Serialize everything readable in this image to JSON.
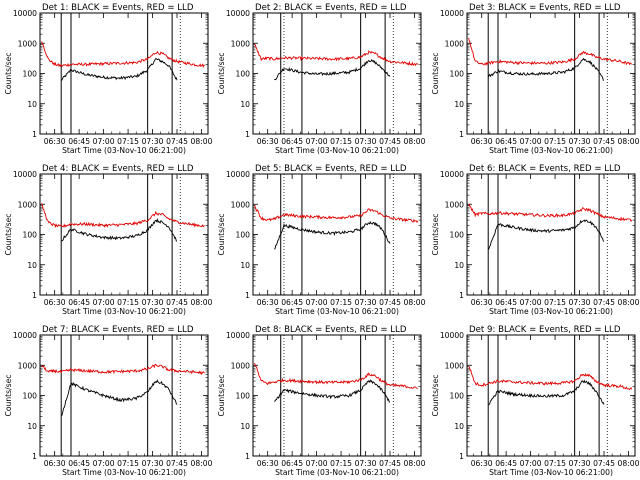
{
  "figure": {
    "x_ticks": [
      "06:30",
      "06:45",
      "07:00",
      "07:15",
      "07:30",
      "07:45",
      "08:00"
    ],
    "y_ticks": [
      "1",
      "10",
      "100",
      "1000",
      "10000"
    ]
  },
  "colors": {
    "events": "#000000",
    "lld": "#e00000"
  },
  "chart_data": [
    {
      "type": "line",
      "title": "Det 1: BLACK = Events, RED = LLD",
      "xlabel": "Start Time (03-Nov-10 06:21:00)",
      "ylabel": "Counts/sec",
      "xlim": [
        "06:21",
        "08:04"
      ],
      "ylim": [
        1,
        10000
      ],
      "yscale": "log",
      "x_ticks": [
        "06:30",
        "06:45",
        "07:00",
        "07:15",
        "07:30",
        "07:45",
        "08:00"
      ],
      "solid_vlines": [
        "06:34",
        "06:40",
        "07:27",
        "07:42"
      ],
      "dotted_vlines": [
        "06:40",
        "07:47"
      ],
      "x": [
        "06:22",
        "06:26",
        "06:30",
        "06:34",
        "06:40",
        "06:50",
        "07:00",
        "07:10",
        "07:20",
        "07:27",
        "07:32",
        "07:36",
        "07:40",
        "07:45",
        "07:55",
        "08:02"
      ],
      "series": [
        {
          "name": "Events",
          "color": "#000000",
          "values": [
            null,
            null,
            null,
            60,
            130,
            90,
            75,
            70,
            80,
            130,
            300,
            250,
            180,
            60,
            null,
            null
          ]
        },
        {
          "name": "LLD",
          "color": "#e00000",
          "values": [
            1200,
            300,
            200,
            180,
            200,
            200,
            210,
            220,
            230,
            300,
            500,
            450,
            320,
            250,
            200,
            180
          ]
        }
      ]
    },
    {
      "type": "line",
      "title": "Det 2: BLACK = Events, RED = LLD",
      "xlabel": "Start Time (03-Nov-10 06:21:00)",
      "ylabel": "Counts/sec",
      "xlim": [
        "06:21",
        "08:04"
      ],
      "ylim": [
        1,
        10000
      ],
      "yscale": "log",
      "x_ticks": [
        "06:30",
        "06:45",
        "07:00",
        "07:15",
        "07:30",
        "07:45",
        "08:00"
      ],
      "solid_vlines": [
        "06:38",
        "06:51",
        "07:27",
        "07:42"
      ],
      "dotted_vlines": [
        "06:40",
        "07:47"
      ],
      "x": [
        "06:22",
        "06:26",
        "06:30",
        "06:34",
        "06:40",
        "06:50",
        "07:00",
        "07:10",
        "07:20",
        "07:27",
        "07:32",
        "07:36",
        "07:40",
        "07:45",
        "07:55",
        "08:02"
      ],
      "series": [
        {
          "name": "Events",
          "color": "#000000",
          "values": [
            null,
            null,
            null,
            60,
            150,
            110,
            95,
            100,
            110,
            150,
            280,
            230,
            150,
            80,
            null,
            null
          ]
        },
        {
          "name": "LLD",
          "color": "#e00000",
          "values": [
            900,
            300,
            320,
            300,
            330,
            320,
            310,
            300,
            310,
            350,
            500,
            450,
            330,
            250,
            220,
            200
          ]
        }
      ]
    },
    {
      "type": "line",
      "title": "Det 3: BLACK = Events, RED = LLD",
      "xlabel": "Start Time (03-Nov-10 06:21:00)",
      "ylabel": "Counts/sec",
      "xlim": [
        "06:21",
        "08:04"
      ],
      "ylim": [
        1,
        10000
      ],
      "yscale": "log",
      "x_ticks": [
        "06:30",
        "06:45",
        "07:00",
        "07:15",
        "07:30",
        "07:45",
        "08:00"
      ],
      "solid_vlines": [
        "06:34",
        "06:40",
        "07:27",
        "07:42"
      ],
      "dotted_vlines": [
        "06:40",
        "07:47"
      ],
      "x": [
        "06:22",
        "06:26",
        "06:30",
        "06:34",
        "06:40",
        "06:50",
        "07:00",
        "07:10",
        "07:20",
        "07:27",
        "07:32",
        "07:36",
        "07:40",
        "07:45",
        "07:55",
        "08:02"
      ],
      "series": [
        {
          "name": "Events",
          "color": "#000000",
          "values": [
            null,
            null,
            null,
            80,
            120,
            100,
            95,
            100,
            110,
            150,
            300,
            250,
            150,
            60,
            null,
            null
          ]
        },
        {
          "name": "LLD",
          "color": "#e00000",
          "values": [
            1500,
            250,
            200,
            220,
            250,
            230,
            220,
            220,
            240,
            300,
            500,
            450,
            350,
            300,
            250,
            200
          ]
        }
      ]
    },
    {
      "type": "line",
      "title": "Det 4: BLACK = Events, RED = LLD",
      "xlabel": "Start Time (03-Nov-10 06:21:00)",
      "ylabel": "Counts/sec",
      "xlim": [
        "06:21",
        "08:04"
      ],
      "ylim": [
        1,
        10000
      ],
      "yscale": "log",
      "x_ticks": [
        "06:30",
        "06:45",
        "07:00",
        "07:15",
        "07:30",
        "07:45",
        "08:00"
      ],
      "solid_vlines": [
        "06:34",
        "06:40",
        "07:27",
        "07:42"
      ],
      "dotted_vlines": [
        "06:40",
        "07:47"
      ],
      "x": [
        "06:22",
        "06:26",
        "06:30",
        "06:34",
        "06:40",
        "06:50",
        "07:00",
        "07:10",
        "07:20",
        "07:27",
        "07:32",
        "07:36",
        "07:40",
        "07:45",
        "07:55",
        "08:02"
      ],
      "series": [
        {
          "name": "Events",
          "color": "#000000",
          "values": [
            null,
            null,
            null,
            60,
            150,
            100,
            80,
            75,
            90,
            140,
            300,
            250,
            180,
            60,
            null,
            null
          ]
        },
        {
          "name": "LLD",
          "color": "#e00000",
          "values": [
            1000,
            250,
            200,
            180,
            220,
            220,
            200,
            210,
            230,
            300,
            500,
            450,
            330,
            260,
            210,
            190
          ]
        }
      ]
    },
    {
      "type": "line",
      "title": "Det 5: BLACK = Events, RED = LLD",
      "xlabel": "Start Time (03-Nov-10 06:21:00)",
      "ylabel": "Counts/sec",
      "xlim": [
        "06:21",
        "08:04"
      ],
      "ylim": [
        1,
        10000
      ],
      "yscale": "log",
      "x_ticks": [
        "06:30",
        "06:45",
        "07:00",
        "07:15",
        "07:30",
        "07:45",
        "08:00"
      ],
      "solid_vlines": [
        "06:38",
        "06:51",
        "07:27",
        "07:42"
      ],
      "dotted_vlines": [
        "06:40",
        "07:47"
      ],
      "x": [
        "06:22",
        "06:26",
        "06:30",
        "06:34",
        "06:40",
        "06:50",
        "07:00",
        "07:10",
        "07:20",
        "07:27",
        "07:32",
        "07:36",
        "07:40",
        "07:45",
        "07:55",
        "08:02"
      ],
      "series": [
        {
          "name": "Events",
          "color": "#000000",
          "values": [
            null,
            null,
            null,
            30,
            200,
            150,
            120,
            110,
            120,
            150,
            250,
            230,
            150,
            50,
            null,
            null
          ]
        },
        {
          "name": "LLD",
          "color": "#e00000",
          "values": [
            900,
            350,
            300,
            320,
            450,
            400,
            380,
            360,
            380,
            420,
            650,
            600,
            450,
            350,
            300,
            280
          ]
        }
      ]
    },
    {
      "type": "line",
      "title": "Det 6: BLACK = Events, RED = LLD",
      "xlabel": "Start Time (03-Nov-10 06:21:00)",
      "ylabel": "Counts/sec",
      "xlim": [
        "06:21",
        "08:04"
      ],
      "ylim": [
        1,
        10000
      ],
      "yscale": "log",
      "x_ticks": [
        "06:30",
        "06:45",
        "07:00",
        "07:15",
        "07:30",
        "07:45",
        "08:00"
      ],
      "solid_vlines": [
        "06:34",
        "06:40",
        "07:27",
        "07:42"
      ],
      "dotted_vlines": [
        "06:40",
        "07:47"
      ],
      "x": [
        "06:22",
        "06:26",
        "06:30",
        "06:34",
        "06:40",
        "06:50",
        "07:00",
        "07:10",
        "07:20",
        "07:27",
        "07:32",
        "07:36",
        "07:40",
        "07:45",
        "07:55",
        "08:02"
      ],
      "series": [
        {
          "name": "Events",
          "color": "#000000",
          "values": [
            null,
            null,
            null,
            30,
            220,
            170,
            140,
            130,
            140,
            170,
            300,
            270,
            180,
            60,
            null,
            null
          ]
        },
        {
          "name": "LLD",
          "color": "#e00000",
          "values": [
            1000,
            450,
            500,
            480,
            520,
            480,
            450,
            420,
            430,
            500,
            700,
            650,
            500,
            380,
            330,
            300
          ]
        }
      ]
    },
    {
      "type": "line",
      "title": "Det 7: BLACK = Events, RED = LLD",
      "xlabel": "Start Time (03-Nov-10 06:21:00)",
      "ylabel": "Counts/sec",
      "xlim": [
        "06:21",
        "08:04"
      ],
      "ylim": [
        1,
        10000
      ],
      "yscale": "log",
      "x_ticks": [
        "06:30",
        "06:45",
        "07:00",
        "07:15",
        "07:30",
        "07:45",
        "08:00"
      ],
      "solid_vlines": [
        "06:34",
        "06:40",
        "07:27",
        "07:42"
      ],
      "dotted_vlines": [
        "06:40",
        "07:47"
      ],
      "x": [
        "06:22",
        "06:26",
        "06:30",
        "06:34",
        "06:40",
        "06:50",
        "07:00",
        "07:10",
        "07:20",
        "07:27",
        "07:32",
        "07:36",
        "07:40",
        "07:45",
        "07:55",
        "08:02"
      ],
      "series": [
        {
          "name": "Events",
          "color": "#000000",
          "values": [
            null,
            null,
            null,
            20,
            250,
            150,
            100,
            70,
            80,
            130,
            300,
            250,
            160,
            50,
            null,
            null
          ]
        },
        {
          "name": "LLD",
          "color": "#e00000",
          "values": [
            1000,
            600,
            650,
            600,
            700,
            650,
            600,
            620,
            650,
            750,
            1000,
            900,
            700,
            650,
            600,
            550
          ]
        }
      ]
    },
    {
      "type": "line",
      "title": "Det 8: BLACK = Events, RED = LLD",
      "xlabel": "Start Time (03-Nov-10 06:21:00)",
      "ylabel": "Counts/sec",
      "xlim": [
        "06:21",
        "08:04"
      ],
      "ylim": [
        1,
        10000
      ],
      "yscale": "log",
      "x_ticks": [
        "06:30",
        "06:45",
        "07:00",
        "07:15",
        "07:30",
        "07:45",
        "08:00"
      ],
      "solid_vlines": [
        "06:38",
        "06:51",
        "07:27",
        "07:42"
      ],
      "dotted_vlines": [
        "06:40",
        "07:47"
      ],
      "x": [
        "06:22",
        "06:26",
        "06:30",
        "06:34",
        "06:40",
        "06:50",
        "07:00",
        "07:10",
        "07:20",
        "07:27",
        "07:32",
        "07:36",
        "07:40",
        "07:45",
        "07:55",
        "08:02"
      ],
      "series": [
        {
          "name": "Events",
          "color": "#000000",
          "values": [
            null,
            null,
            null,
            60,
            150,
            120,
            100,
            90,
            100,
            150,
            300,
            250,
            150,
            60,
            null,
            null
          ]
        },
        {
          "name": "LLD",
          "color": "#e00000",
          "values": [
            1200,
            300,
            250,
            280,
            320,
            300,
            280,
            270,
            280,
            330,
            500,
            450,
            300,
            220,
            200,
            170
          ]
        }
      ]
    },
    {
      "type": "line",
      "title": "Det 9: BLACK = Events, RED = LLD",
      "xlabel": "Start Time (03-Nov-10 06:21:00)",
      "ylabel": "Counts/sec",
      "xlim": [
        "06:21",
        "08:04"
      ],
      "ylim": [
        1,
        10000
      ],
      "yscale": "log",
      "x_ticks": [
        "06:30",
        "06:45",
        "07:00",
        "07:15",
        "07:30",
        "07:45",
        "08:00"
      ],
      "solid_vlines": [
        "06:34",
        "06:40",
        "07:27",
        "07:42"
      ],
      "dotted_vlines": [
        "06:40",
        "07:47"
      ],
      "x": [
        "06:22",
        "06:26",
        "06:30",
        "06:34",
        "06:40",
        "06:50",
        "07:00",
        "07:10",
        "07:20",
        "07:27",
        "07:32",
        "07:36",
        "07:40",
        "07:45",
        "07:55",
        "08:02"
      ],
      "series": [
        {
          "name": "Events",
          "color": "#000000",
          "values": [
            null,
            null,
            null,
            50,
            140,
            110,
            100,
            95,
            100,
            140,
            300,
            250,
            140,
            50,
            null,
            null
          ]
        },
        {
          "name": "LLD",
          "color": "#e00000",
          "values": [
            1000,
            250,
            220,
            250,
            300,
            280,
            260,
            250,
            260,
            300,
            500,
            450,
            300,
            220,
            200,
            160
          ]
        }
      ]
    }
  ]
}
